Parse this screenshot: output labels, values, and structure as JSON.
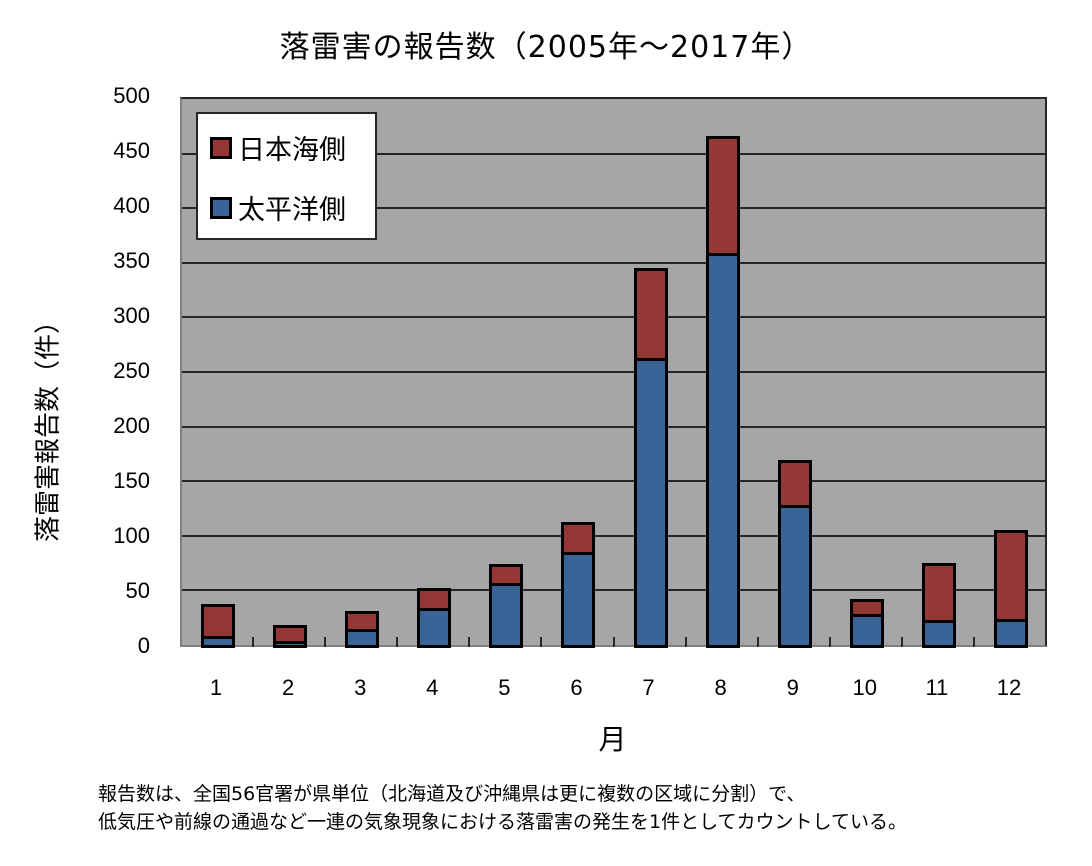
{
  "chart_data": {
    "type": "bar",
    "stacked": true,
    "title": "落雷害の報告数（2005年～2017年）",
    "xlabel": "月",
    "ylabel": "落雷害報告数（件）",
    "categories": [
      "1",
      "2",
      "3",
      "4",
      "5",
      "6",
      "7",
      "8",
      "9",
      "10",
      "11",
      "12"
    ],
    "series": [
      {
        "name": "太平洋側",
        "color": "#3a6398",
        "values": [
          6,
          2,
          13,
          32,
          55,
          83,
          261,
          357,
          126,
          27,
          21,
          22
        ]
      },
      {
        "name": "日本海側",
        "color": "#953735",
        "values": [
          32,
          16,
          18,
          20,
          19,
          30,
          84,
          109,
          43,
          15,
          54,
          83
        ]
      }
    ],
    "totals": [
      38,
      18,
      31,
      52,
      74,
      113,
      345,
      466,
      169,
      42,
      75,
      105
    ],
    "ylim": [
      0,
      500
    ],
    "yticks": [
      0,
      50,
      100,
      150,
      200,
      250,
      300,
      350,
      400,
      450,
      500
    ],
    "grid": true,
    "legend_position": "top-left inside",
    "plot_background": "#a6a6a6"
  },
  "legend": {
    "items": [
      {
        "label": "日本海側",
        "color": "#953735"
      },
      {
        "label": "太平洋側",
        "color": "#3a6398"
      }
    ]
  },
  "notes": {
    "line1": "報告数は、全国56官署が県単位（北海道及び沖縄県は更に複数の区域に分割）で、",
    "line2": "低気圧や前線の通過など一連の気象現象における落雷害の発生を1件としてカウントしている。"
  }
}
